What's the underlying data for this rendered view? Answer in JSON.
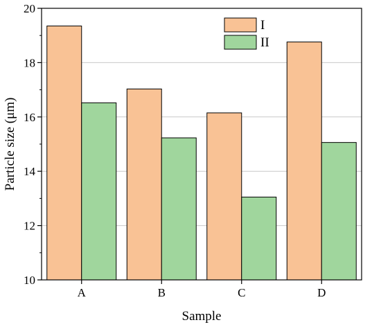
{
  "chart_data": {
    "type": "bar",
    "categories": [
      "A",
      "B",
      "C",
      "D"
    ],
    "series": [
      {
        "name": "I",
        "values": [
          19.35,
          17.03,
          16.15,
          18.76
        ],
        "color": "#f9c295"
      },
      {
        "name": "II",
        "values": [
          16.52,
          15.23,
          13.05,
          15.06
        ],
        "color": "#a0d69d"
      }
    ],
    "xlabel": "Sample",
    "ylabel": "Particle size (μm)",
    "ylim": [
      10,
      20
    ],
    "yticks": [
      "10",
      "12",
      "14",
      "16",
      "18",
      "20"
    ],
    "grid": true,
    "legend_position": "top-right"
  }
}
